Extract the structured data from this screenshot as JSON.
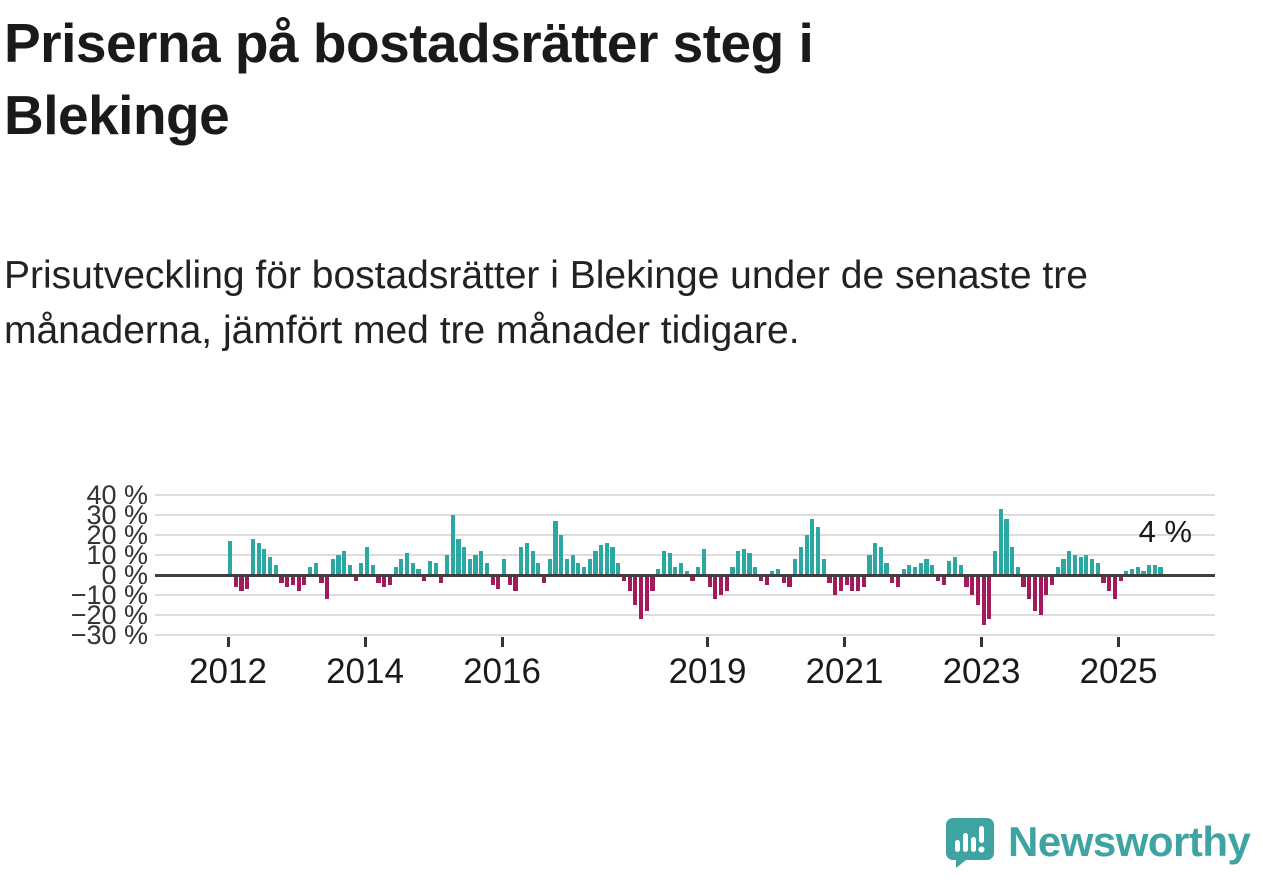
{
  "page": {
    "title": "Priserna på bostadsrätter steg i Blekinge",
    "subtitle": "Prisutveckling för bostadsrätter i Blekinge under de senaste tre månaderna, jämfört med tre månader tidigare."
  },
  "branding": {
    "wordmark": "Newsworthy",
    "icon": "bar-chart-speech-bubble-icon",
    "brand_color": "#3fa3a2"
  },
  "chart_data": {
    "type": "bar",
    "title": "Priserna på bostadsrätter steg i Blekinge",
    "subtitle": "Prisutveckling för bostadsrätter i Blekinge under de senaste tre månaderna, jämfört med tre månader tidigare.",
    "unit": "%",
    "frequency": "monthly",
    "start_month": "2012-01",
    "values": [
      17,
      -6,
      -8,
      -7,
      18,
      16,
      13,
      9,
      5,
      -4,
      -6,
      -5,
      -8,
      -5,
      4,
      6,
      -4,
      -12,
      8,
      10,
      12,
      5,
      -3,
      6,
      14,
      5,
      -4,
      -6,
      -5,
      4,
      8,
      11,
      6,
      3,
      -3,
      7,
      6,
      -4,
      10,
      30,
      18,
      14,
      8,
      10,
      12,
      6,
      -5,
      -7,
      8,
      -5,
      -8,
      14,
      16,
      12,
      6,
      -4,
      8,
      27,
      20,
      8,
      10,
      6,
      4,
      8,
      12,
      15,
      16,
      14,
      6,
      -3,
      -8,
      -15,
      -22,
      -18,
      -8,
      3,
      12,
      11,
      4,
      6,
      2,
      -3,
      4,
      13,
      -6,
      -12,
      -10,
      -8,
      4,
      12,
      13,
      11,
      4,
      -3,
      -5,
      2,
      3,
      -4,
      -6,
      8,
      14,
      20,
      28,
      24,
      8,
      -4,
      -10,
      -8,
      -5,
      -8,
      -8,
      -6,
      10,
      16,
      14,
      6,
      -4,
      -6,
      3,
      5,
      4,
      6,
      8,
      5,
      -3,
      -5,
      7,
      9,
      5,
      -6,
      -10,
      -15,
      -25,
      -22,
      12,
      33,
      28,
      14,
      4,
      -6,
      -12,
      -18,
      -20,
      -10,
      -5,
      4,
      8,
      12,
      10,
      9,
      10,
      8,
      6,
      -4,
      -8,
      -12,
      -3,
      2,
      3,
      4,
      2,
      5,
      5,
      4
    ],
    "ylim": [
      -30,
      40
    ],
    "y_tick_values": [
      40,
      30,
      20,
      10,
      0,
      -10,
      -20,
      -30
    ],
    "y_tick_labels": [
      "40 %",
      "30 %",
      "20 %",
      "10 %",
      "0 %",
      "−10 %",
      "−20 %",
      "−30 %"
    ],
    "x_ticks": [
      {
        "label": "2012",
        "year": 2012
      },
      {
        "label": "2014",
        "year": 2014
      },
      {
        "label": "2016",
        "year": 2016
      },
      {
        "label": "2019",
        "year": 2019
      },
      {
        "label": "2021",
        "year": 2021
      },
      {
        "label": "2023",
        "year": 2023
      },
      {
        "label": "2025",
        "year": 2025
      }
    ],
    "annotation": {
      "text": "4 %",
      "value": 4
    },
    "positive_color": "#2ca8a2",
    "negative_color": "#a3195b",
    "grid": true,
    "legend": "none"
  }
}
